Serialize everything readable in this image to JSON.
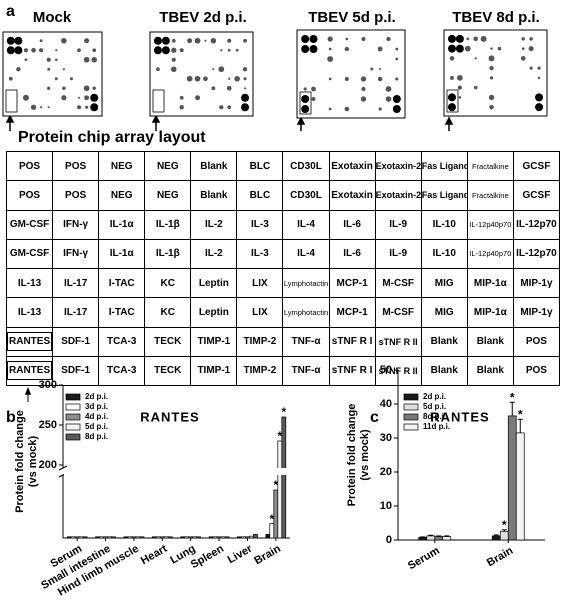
{
  "panel_a": {
    "label": "a",
    "blots": [
      {
        "title": "Mock"
      },
      {
        "title": "TBEV 2d p.i."
      },
      {
        "title": "TBEV 5d p.i."
      },
      {
        "title": "TBEV 8d p.i."
      }
    ],
    "layout_title": "Protein chip array layout",
    "table": {
      "rows": [
        [
          "POS",
          "POS",
          "NEG",
          "NEG",
          "Blank",
          "BLC",
          "CD30L",
          "Exotaxin",
          "Exotaxin-2",
          "Fas Ligand",
          "Fractalkine",
          "GCSF"
        ],
        [
          "POS",
          "POS",
          "NEG",
          "NEG",
          "Blank",
          "BLC",
          "CD30L",
          "Exotaxin",
          "Exotaxin-2",
          "Fas Ligand",
          "Fractalkine",
          "GCSF"
        ],
        [
          "GM-CSF",
          "IFN-γ",
          "IL-1α",
          "IL-1β",
          "IL-2",
          "IL-3",
          "IL-4",
          "IL-6",
          "IL-9",
          "IL-10",
          "IL-12p40p70",
          "IL-12p70"
        ],
        [
          "GM-CSF",
          "IFN-γ",
          "IL-1α",
          "IL-1β",
          "IL-2",
          "IL-3",
          "IL-4",
          "IL-6",
          "IL-9",
          "IL-10",
          "IL-12p40p70",
          "IL-12p70"
        ],
        [
          "IL-13",
          "IL-17",
          "I-TAC",
          "KC",
          "Leptin",
          "LIX",
          "Lymphotactin",
          "MCP-1",
          "M-CSF",
          "MIG",
          "MIP-1α",
          "MIP-1γ"
        ],
        [
          "IL-13",
          "IL-17",
          "I-TAC",
          "KC",
          "Leptin",
          "LIX",
          "Lymphotactin",
          "MCP-1",
          "M-CSF",
          "MIG",
          "MIP-1α",
          "MIP-1γ"
        ],
        [
          "RANTES",
          "SDF-1",
          "TCA-3",
          "TECK",
          "TIMP-1",
          "TIMP-2",
          "TNF-α",
          "sTNF R I",
          "sTNF R II",
          "Blank",
          "Blank",
          "POS"
        ],
        [
          "RANTES",
          "SDF-1",
          "TCA-3",
          "TECK",
          "TIMP-1",
          "TIMP-2",
          "TNF-α",
          "sTNF R I",
          "sTNF R II",
          "Blank",
          "Blank",
          "POS"
        ]
      ]
    }
  },
  "chart_data": [
    {
      "type": "bar",
      "panel_label": "b",
      "title": "RANTES",
      "y_label": [
        "Protein fold change",
        "(vs mock)"
      ],
      "categories": [
        "Serum",
        "Small intestine",
        "Hind limb muscle",
        "Heart",
        "Lung",
        "Spleen",
        "Liver",
        "Brain"
      ],
      "ylim_lower": [
        0,
        50
      ],
      "ylim_upper": [
        200,
        300
      ],
      "yticks": [
        200,
        250,
        300
      ],
      "series": [
        {
          "name": "2d p.i.",
          "color": "#1a1a1a",
          "values": [
            1,
            1,
            1,
            1,
            1,
            1,
            1,
            3
          ],
          "markers": [
            null,
            null,
            null,
            null,
            null,
            null,
            null,
            null
          ]
        },
        {
          "name": "3d p.i.",
          "color": "#ffffff",
          "values": [
            1,
            1,
            1,
            1,
            1,
            1,
            1,
            12
          ],
          "markers": [
            null,
            null,
            null,
            null,
            null,
            null,
            null,
            "*"
          ]
        },
        {
          "name": "4d p.i.",
          "color": "#8c8c8c",
          "values": [
            1,
            1,
            1,
            1,
            1,
            1,
            1,
            40
          ],
          "markers": [
            null,
            null,
            null,
            null,
            null,
            null,
            null,
            "*"
          ]
        },
        {
          "name": "5d p.i.",
          "color": "#f4f4f4",
          "values": [
            1,
            1,
            1,
            1,
            1,
            1,
            1.5,
            230
          ],
          "markers": [
            null,
            null,
            null,
            null,
            null,
            null,
            null,
            "*"
          ]
        },
        {
          "name": "8d p.i.",
          "color": "#5a5a5a",
          "values": [
            1,
            1,
            1,
            1,
            1,
            1,
            3,
            260
          ],
          "markers": [
            null,
            null,
            null,
            null,
            null,
            null,
            null,
            "*"
          ]
        }
      ]
    },
    {
      "type": "bar",
      "panel_label": "c",
      "title": "RANTES",
      "y_label": [
        "Protein fold change",
        "(vs mock)"
      ],
      "categories": [
        "Serum",
        "Brain"
      ],
      "ylim": [
        0,
        50
      ],
      "yticks": [
        0,
        10,
        20,
        30,
        40,
        50
      ],
      "series": [
        {
          "name": "2d p.i.",
          "color": "#1a1a1a",
          "values": [
            0.8,
            1.2
          ],
          "errors": [
            0.1,
            0.3
          ],
          "markers": [
            null,
            null
          ]
        },
        {
          "name": "5d p.i.",
          "color": "#e0e0e0",
          "values": [
            1.2,
            2.5
          ],
          "errors": [
            0.2,
            0.5
          ],
          "markers": [
            null,
            "*"
          ]
        },
        {
          "name": "8d p.i.",
          "color": "#7a7a7a",
          "values": [
            1,
            36.5
          ],
          "errors": [
            0.2,
            4
          ],
          "markers": [
            null,
            "*"
          ]
        },
        {
          "name": "11d p.i.",
          "color": "#f4f4f4",
          "values": [
            1,
            31.5
          ],
          "errors": [
            0.2,
            4
          ],
          "markers": [
            null,
            "*"
          ]
        }
      ]
    }
  ]
}
